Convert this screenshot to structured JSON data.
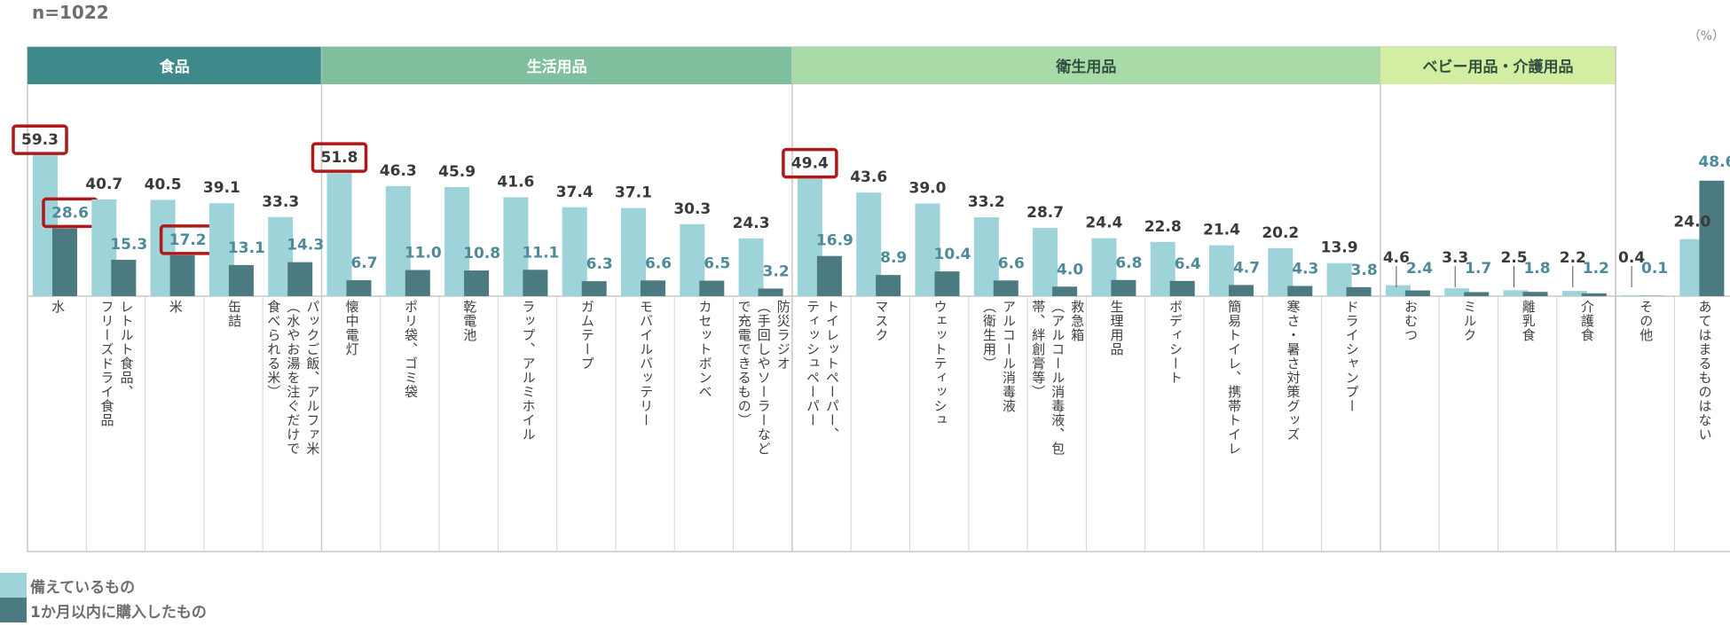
{
  "header": {
    "n_label": "n=1022",
    "unit": "（%）"
  },
  "colors": {
    "stocked": "#9dd3d9",
    "bought": "#4b7a80",
    "group_food": "#3e8a8a",
    "group_living": "#7fbf9d",
    "group_hygiene": "#a9dba8",
    "group_baby": "#d3eea3",
    "highlight": "#b01818",
    "stocked_label": "#3a3a3a",
    "bought_label": "#4e8a99"
  },
  "legend": [
    {
      "label": "備えているもの",
      "color": "#9dd3d9"
    },
    {
      "label": "1か月以内に購入したもの",
      "color": "#4b7a80"
    }
  ],
  "chart_data": {
    "type": "bar",
    "groups": [
      {
        "name": "食品",
        "start": 0,
        "end": 4
      },
      {
        "name": "生活用品",
        "start": 5,
        "end": 12
      },
      {
        "name": "衛生用品",
        "start": 13,
        "end": 22
      },
      {
        "name": "ベビー用品・介護用品",
        "start": 23,
        "end": 26
      }
    ],
    "categories": [
      "水",
      "レトルト食品、\nフリーズドライ食品",
      "米",
      "缶詰",
      "パックご飯、アルファ米\n（水やお湯を注ぐだけで\n食べられる米）",
      "懐中電灯",
      "ポリ袋、ゴミ袋",
      "乾電池",
      "ラップ、アルミホイル",
      "ガムテープ",
      "モバイルバッテリー",
      "カセットボンベ",
      "防災ラジオ\n（手回しやソーラーなど\nで充電できるもの）",
      "トイレットペーパー、\nティッシュペーパー",
      "マスク",
      "ウェットティッシュ",
      "アルコール消毒液\n（衛生用）",
      "救急箱\n（アルコール消毒液、包\n帯、絆創膏等）",
      "生理用品",
      "ボディシート",
      "簡易トイレ、携帯トイレ",
      "寒さ・暑さ対策グッズ",
      "ドライシャンプー",
      "おむつ",
      "ミルク",
      "離乳食",
      "介護食",
      "その他",
      "あてはまるものはない"
    ],
    "series": [
      {
        "name": "備えているもの",
        "values": [
          59.3,
          40.7,
          40.5,
          39.1,
          33.3,
          51.8,
          46.3,
          45.9,
          41.6,
          37.4,
          37.1,
          30.3,
          24.3,
          49.4,
          43.6,
          39.0,
          33.2,
          28.7,
          24.4,
          22.8,
          21.4,
          20.2,
          13.9,
          4.6,
          3.3,
          2.5,
          2.2,
          0.4,
          24.0
        ]
      },
      {
        "name": "1か月以内に購入したもの",
        "values": [
          28.6,
          15.3,
          17.2,
          13.1,
          14.3,
          6.7,
          11.0,
          10.8,
          11.1,
          6.3,
          6.6,
          6.5,
          3.2,
          16.9,
          8.9,
          10.4,
          6.6,
          4.0,
          6.8,
          6.4,
          4.7,
          4.3,
          3.8,
          2.4,
          1.7,
          1.8,
          1.2,
          0.1,
          48.6
        ]
      }
    ],
    "highlighted": [
      {
        "series": 0,
        "index": 0
      },
      {
        "series": 1,
        "index": 0
      },
      {
        "series": 1,
        "index": 2
      },
      {
        "series": 0,
        "index": 5
      },
      {
        "series": 0,
        "index": 13
      }
    ],
    "ylim": [
      0,
      65
    ],
    "ylabel": "（%）"
  }
}
